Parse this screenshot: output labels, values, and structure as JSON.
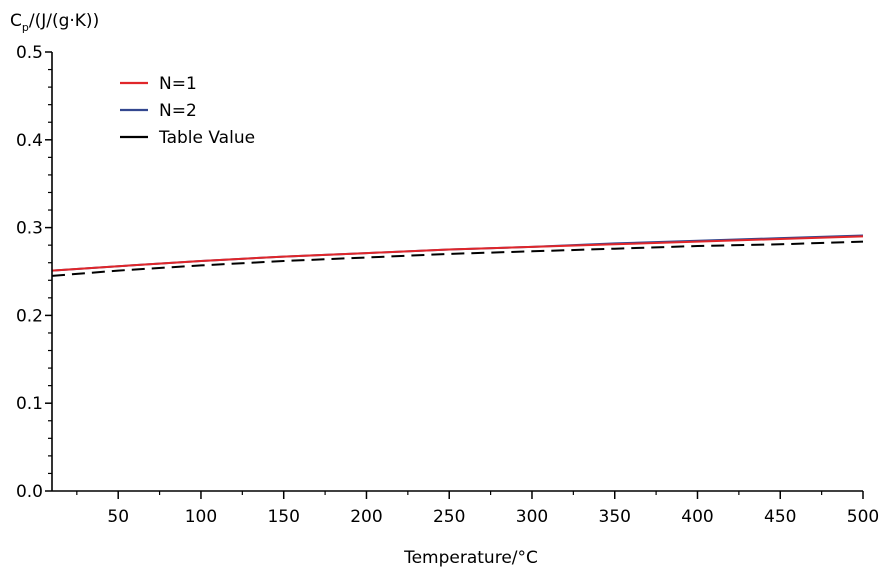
{
  "chart_data": {
    "type": "line",
    "xlabel": "Temperature/°C",
    "ylabel_main": "C",
    "ylabel_sub": "p",
    "ylabel_rest": "/(J/(g·K))",
    "xlim": [
      10,
      500
    ],
    "ylim": [
      0,
      0.5
    ],
    "x_ticks": [
      50,
      100,
      150,
      200,
      250,
      300,
      350,
      400,
      450,
      500
    ],
    "x_tick_labels": [
      "50",
      "100",
      "150",
      "200",
      "250",
      "300",
      "350",
      "400",
      "450",
      "500"
    ],
    "y_ticks": [
      0.0,
      0.1,
      0.2,
      0.3,
      0.4,
      0.5
    ],
    "y_tick_labels": [
      "0.0",
      "0.1",
      "0.2",
      "0.3",
      "0.4",
      "0.5"
    ],
    "grid": false,
    "legend_position": "top-left",
    "x": [
      10,
      50,
      100,
      150,
      200,
      250,
      300,
      350,
      400,
      450,
      500
    ],
    "series": [
      {
        "name": "N=1",
        "color": "#e0262a",
        "style": "solid",
        "values": [
          0.251,
          0.256,
          0.262,
          0.267,
          0.271,
          0.275,
          0.278,
          0.281,
          0.284,
          0.287,
          0.29
        ]
      },
      {
        "name": "N=2",
        "color": "#33478f",
        "style": "solid",
        "values": [
          0.251,
          0.256,
          0.262,
          0.267,
          0.271,
          0.275,
          0.278,
          0.282,
          0.285,
          0.288,
          0.291
        ]
      },
      {
        "name": "Table Value",
        "color": "#000000",
        "style": "dashed",
        "values": [
          0.245,
          0.251,
          0.257,
          0.262,
          0.266,
          0.27,
          0.273,
          0.276,
          0.279,
          0.281,
          0.284
        ]
      }
    ]
  }
}
